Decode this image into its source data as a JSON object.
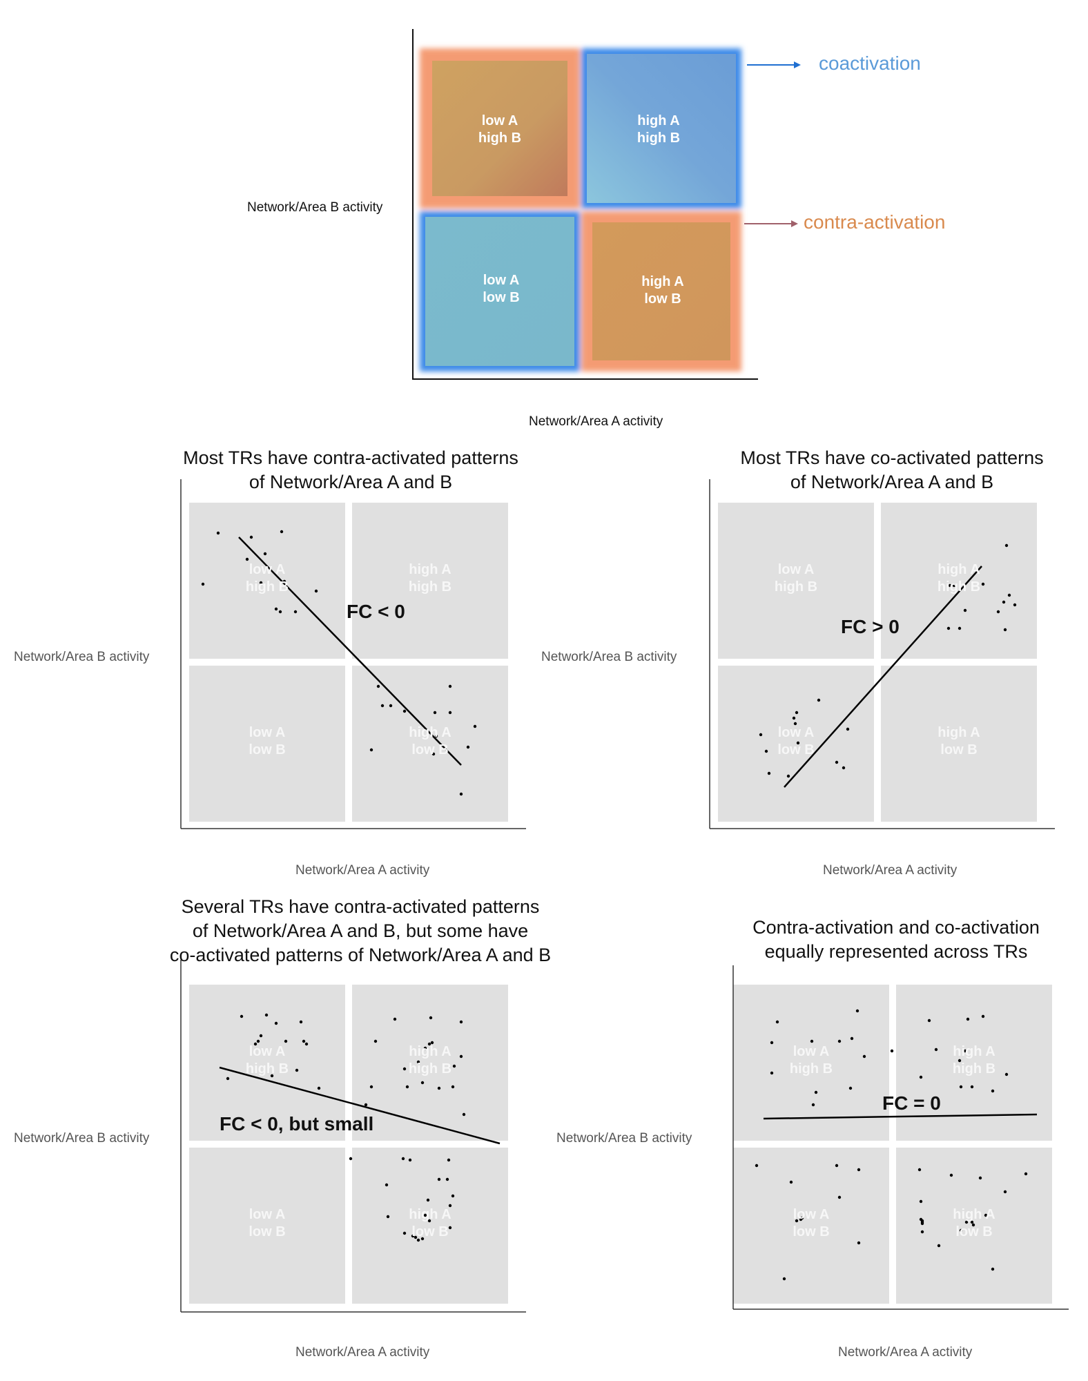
{
  "quadrant_labels": {
    "tl": [
      "low A",
      "high B"
    ],
    "tr": [
      "high A",
      "high B"
    ],
    "bl": [
      "low A",
      "low B"
    ],
    "br": [
      "high A",
      "low B"
    ]
  },
  "axis_labels": {
    "x": "Network/Area A activity",
    "y": "Network/Area B activity"
  },
  "legend": {
    "coactivation": "coactivation",
    "contra": "contra-activation",
    "coactivation_color": "#3b7fc9",
    "contra_color": "#d98a4e"
  },
  "panels": [
    {
      "title": [
        "Most TRs have contra-activated patterns",
        "of Network/Area A and B"
      ],
      "fc_label": "FC < 0"
    },
    {
      "title": [
        "Most TRs have co-activated patterns",
        "of Network/Area A and B"
      ],
      "fc_label": "FC > 0"
    },
    {
      "title": [
        "Several TRs have contra-activated patterns",
        "of Network/Area A and B, but some have",
        "co-activated patterns of Network/Area A and B"
      ],
      "fc_label": "FC < 0, but small"
    },
    {
      "title": [
        "Contra-activation and co-activation",
        "equally represented across TRs"
      ],
      "fc_label": "FC = 0"
    }
  ]
}
